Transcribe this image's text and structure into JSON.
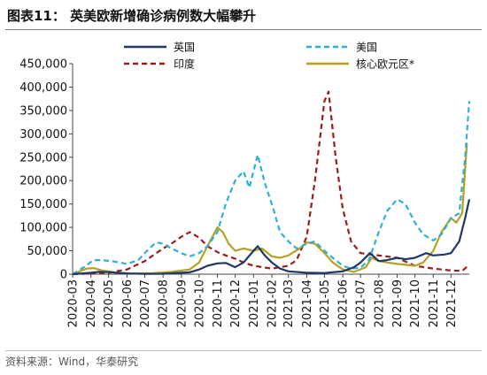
{
  "header": {
    "title": "图表11：  英美欧新增确诊病例数大幅攀升"
  },
  "footer": {
    "source": "资料来源：Wind，华泰研究"
  },
  "chart_data": {
    "type": "line",
    "title": "图表11：  英美欧新增确诊病例数大幅攀升",
    "xlabel": "",
    "ylabel": "",
    "ylim": [
      0,
      450000
    ],
    "yticks": [
      0,
      50000,
      100000,
      150000,
      200000,
      250000,
      300000,
      350000,
      400000,
      450000
    ],
    "ytick_labels": [
      "0",
      "50,000",
      "100,000",
      "150,000",
      "200,000",
      "250,000",
      "300,000",
      "350,000",
      "400,000",
      "450,000"
    ],
    "x_range": [
      "2020-03",
      "2022-01"
    ],
    "xtick_labels": [
      "2020-03",
      "2020-04",
      "2020-05",
      "2020-06",
      "2020-07",
      "2020-08",
      "2020-09",
      "2020-10",
      "2020-11",
      "2020-12",
      "2021-01",
      "2021-02",
      "2021-03",
      "2021-04",
      "2021-05",
      "2021-06",
      "2021-07",
      "2021-08",
      "2021-09",
      "2021-10",
      "2021-11",
      "2021-12"
    ],
    "grid": false,
    "legend_position": "top",
    "series": [
      {
        "name": "英国",
        "color": "#1f3864",
        "style": "solid",
        "points": [
          [
            "2020-03-01",
            0
          ],
          [
            "2020-04-01",
            3000
          ],
          [
            "2020-04-15",
            5000
          ],
          [
            "2020-05-01",
            4500
          ],
          [
            "2020-05-15",
            3000
          ],
          [
            "2020-06-01",
            1500
          ],
          [
            "2020-07-01",
            800
          ],
          [
            "2020-08-01",
            1000
          ],
          [
            "2020-09-01",
            3000
          ],
          [
            "2020-09-15",
            4000
          ],
          [
            "2020-10-01",
            10000
          ],
          [
            "2020-10-15",
            18000
          ],
          [
            "2020-11-01",
            23000
          ],
          [
            "2020-11-15",
            24000
          ],
          [
            "2020-12-01",
            15000
          ],
          [
            "2020-12-15",
            25000
          ],
          [
            "2021-01-01",
            50000
          ],
          [
            "2021-01-08",
            60000
          ],
          [
            "2021-01-20",
            40000
          ],
          [
            "2021-02-01",
            25000
          ],
          [
            "2021-02-15",
            12000
          ],
          [
            "2021-03-01",
            6000
          ],
          [
            "2021-04-01",
            3000
          ],
          [
            "2021-05-01",
            2500
          ],
          [
            "2021-06-01",
            6000
          ],
          [
            "2021-06-20",
            15000
          ],
          [
            "2021-07-01",
            25000
          ],
          [
            "2021-07-17",
            45000
          ],
          [
            "2021-08-01",
            28000
          ],
          [
            "2021-08-15",
            30000
          ],
          [
            "2021-09-01",
            35000
          ],
          [
            "2021-09-15",
            32000
          ],
          [
            "2021-10-01",
            35000
          ],
          [
            "2021-10-20",
            45000
          ],
          [
            "2021-11-01",
            40000
          ],
          [
            "2021-11-20",
            42000
          ],
          [
            "2021-12-01",
            45000
          ],
          [
            "2021-12-15",
            70000
          ],
          [
            "2021-12-25",
            120000
          ],
          [
            "2022-01-01",
            160000
          ]
        ]
      },
      {
        "name": "美国",
        "color": "#2eb0d6",
        "style": "dashed",
        "points": [
          [
            "2020-03-01",
            0
          ],
          [
            "2020-03-20",
            15000
          ],
          [
            "2020-04-05",
            30000
          ],
          [
            "2020-04-20",
            30000
          ],
          [
            "2020-05-10",
            27000
          ],
          [
            "2020-06-01",
            22000
          ],
          [
            "2020-06-20",
            30000
          ],
          [
            "2020-07-05",
            50000
          ],
          [
            "2020-07-20",
            68000
          ],
          [
            "2020-08-01",
            65000
          ],
          [
            "2020-08-15",
            55000
          ],
          [
            "2020-09-01",
            45000
          ],
          [
            "2020-09-15",
            38000
          ],
          [
            "2020-10-01",
            45000
          ],
          [
            "2020-10-15",
            60000
          ],
          [
            "2020-11-01",
            90000
          ],
          [
            "2020-11-15",
            150000
          ],
          [
            "2020-12-01",
            200000
          ],
          [
            "2020-12-15",
            220000
          ],
          [
            "2020-12-25",
            185000
          ],
          [
            "2021-01-08",
            255000
          ],
          [
            "2021-01-20",
            195000
          ],
          [
            "2021-02-01",
            150000
          ],
          [
            "2021-02-15",
            90000
          ],
          [
            "2021-03-01",
            70000
          ],
          [
            "2021-03-15",
            55000
          ],
          [
            "2021-04-01",
            65000
          ],
          [
            "2021-04-15",
            70000
          ],
          [
            "2021-05-01",
            50000
          ],
          [
            "2021-05-15",
            35000
          ],
          [
            "2021-06-01",
            18000
          ],
          [
            "2021-06-15",
            12000
          ],
          [
            "2021-07-01",
            14000
          ],
          [
            "2021-07-15",
            30000
          ],
          [
            "2021-08-01",
            90000
          ],
          [
            "2021-08-15",
            135000
          ],
          [
            "2021-09-01",
            160000
          ],
          [
            "2021-09-15",
            150000
          ],
          [
            "2021-10-01",
            110000
          ],
          [
            "2021-10-15",
            85000
          ],
          [
            "2021-11-01",
            72000
          ],
          [
            "2021-11-15",
            85000
          ],
          [
            "2021-12-01",
            120000
          ],
          [
            "2021-12-15",
            130000
          ],
          [
            "2021-12-25",
            250000
          ],
          [
            "2022-01-01",
            370000
          ]
        ]
      },
      {
        "name": "印度",
        "color": "#9b1c1c",
        "style": "dashed",
        "points": [
          [
            "2020-03-01",
            0
          ],
          [
            "2020-05-01",
            3000
          ],
          [
            "2020-06-01",
            10000
          ],
          [
            "2020-07-01",
            28000
          ],
          [
            "2020-08-01",
            55000
          ],
          [
            "2020-08-15",
            65000
          ],
          [
            "2020-09-01",
            80000
          ],
          [
            "2020-09-15",
            90000
          ],
          [
            "2020-10-01",
            78000
          ],
          [
            "2020-10-15",
            60000
          ],
          [
            "2020-11-01",
            47000
          ],
          [
            "2020-11-15",
            40000
          ],
          [
            "2020-12-01",
            33000
          ],
          [
            "2020-12-15",
            25000
          ],
          [
            "2021-01-01",
            18000
          ],
          [
            "2021-02-01",
            12000
          ],
          [
            "2021-03-01",
            18000
          ],
          [
            "2021-03-15",
            30000
          ],
          [
            "2021-04-01",
            80000
          ],
          [
            "2021-04-15",
            200000
          ],
          [
            "2021-05-01",
            370000
          ],
          [
            "2021-05-08",
            390000
          ],
          [
            "2021-05-20",
            250000
          ],
          [
            "2021-06-01",
            140000
          ],
          [
            "2021-06-15",
            70000
          ],
          [
            "2021-07-01",
            45000
          ],
          [
            "2021-08-01",
            40000
          ],
          [
            "2021-09-01",
            35000
          ],
          [
            "2021-10-01",
            18000
          ],
          [
            "2021-11-01",
            12000
          ],
          [
            "2021-12-01",
            8000
          ],
          [
            "2021-12-20",
            7000
          ],
          [
            "2022-01-01",
            20000
          ]
        ]
      },
      {
        "name": "核心欧元区*",
        "color": "#b8a021",
        "style": "solid",
        "points": [
          [
            "2020-03-01",
            0
          ],
          [
            "2020-03-25",
            12000
          ],
          [
            "2020-04-05",
            13000
          ],
          [
            "2020-04-20",
            8000
          ],
          [
            "2020-05-15",
            3000
          ],
          [
            "2020-06-15",
            1500
          ],
          [
            "2020-07-15",
            2000
          ],
          [
            "2020-08-15",
            5000
          ],
          [
            "2020-09-15",
            10000
          ],
          [
            "2020-10-01",
            25000
          ],
          [
            "2020-10-15",
            60000
          ],
          [
            "2020-11-01",
            100000
          ],
          [
            "2020-11-10",
            90000
          ],
          [
            "2020-11-20",
            65000
          ],
          [
            "2020-12-01",
            50000
          ],
          [
            "2020-12-15",
            55000
          ],
          [
            "2021-01-01",
            50000
          ],
          [
            "2021-01-15",
            55000
          ],
          [
            "2021-02-01",
            38000
          ],
          [
            "2021-02-15",
            35000
          ],
          [
            "2021-03-01",
            40000
          ],
          [
            "2021-03-20",
            55000
          ],
          [
            "2021-04-01",
            68000
          ],
          [
            "2021-04-15",
            65000
          ],
          [
            "2021-05-01",
            45000
          ],
          [
            "2021-05-15",
            25000
          ],
          [
            "2021-06-01",
            10000
          ],
          [
            "2021-06-20",
            5000
          ],
          [
            "2021-07-10",
            15000
          ],
          [
            "2021-07-20",
            35000
          ],
          [
            "2021-08-01",
            28000
          ],
          [
            "2021-08-15",
            25000
          ],
          [
            "2021-09-01",
            22000
          ],
          [
            "2021-09-15",
            20000
          ],
          [
            "2021-10-01",
            18000
          ],
          [
            "2021-10-15",
            25000
          ],
          [
            "2021-11-01",
            50000
          ],
          [
            "2021-11-15",
            90000
          ],
          [
            "2021-12-01",
            120000
          ],
          [
            "2021-12-10",
            110000
          ],
          [
            "2021-12-20",
            130000
          ],
          [
            "2021-12-28",
            280000
          ]
        ]
      }
    ]
  }
}
